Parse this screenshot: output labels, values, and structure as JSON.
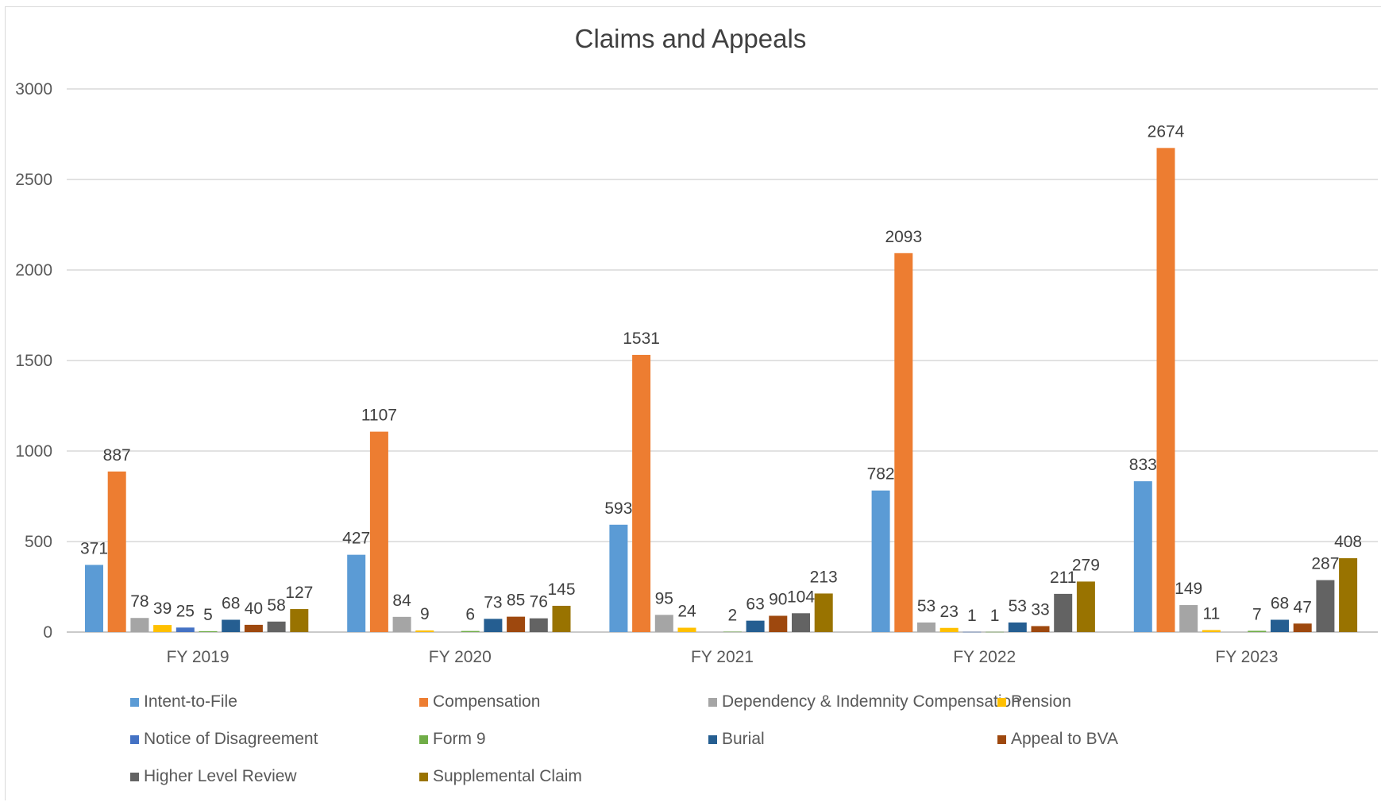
{
  "chart_data": {
    "type": "bar",
    "title": "Claims and Appeals",
    "categories": [
      "FY 2019",
      "FY 2020",
      "FY 2021",
      "FY 2022",
      "FY 2023"
    ],
    "ylim": [
      0,
      3000
    ],
    "yticks": [
      0,
      500,
      1000,
      1500,
      2000,
      2500,
      3000
    ],
    "grid": true,
    "legend_position": "bottom",
    "series": [
      {
        "name": "Intent-to-File",
        "color": "#5b9bd5",
        "values": [
          371,
          427,
          593,
          782,
          833
        ],
        "labels": [
          "371",
          "427",
          "593",
          "782",
          "833"
        ]
      },
      {
        "name": "Compensation",
        "color": "#ed7d31",
        "values": [
          887,
          1107,
          1531,
          2093,
          2674
        ],
        "labels": [
          "887",
          "1107",
          "1531",
          "2093",
          "2674"
        ]
      },
      {
        "name": "Dependency & Indemnity Compensation",
        "color": "#a5a5a5",
        "values": [
          78,
          84,
          95,
          53,
          149
        ],
        "labels": [
          "78",
          "84",
          "95",
          "53",
          "149"
        ]
      },
      {
        "name": "Pension",
        "color": "#ffc000",
        "values": [
          39,
          9,
          24,
          23,
          11
        ],
        "labels": [
          "39",
          "9",
          "24",
          "23",
          "11"
        ]
      },
      {
        "name": "Notice of Disagreement",
        "color": "#4472c4",
        "values": [
          25,
          null,
          null,
          1,
          null
        ],
        "labels": [
          "25",
          "",
          "",
          "1",
          ""
        ]
      },
      {
        "name": "Form 9",
        "color": "#70ad47",
        "values": [
          5,
          6,
          2,
          1,
          7
        ],
        "labels": [
          "5",
          "6",
          "2",
          "1",
          "7"
        ]
      },
      {
        "name": "Burial",
        "color": "#255e91",
        "values": [
          68,
          73,
          63,
          53,
          68
        ],
        "labels": [
          "68",
          "73",
          "63",
          "53",
          "68"
        ]
      },
      {
        "name": "Appeal to BVA",
        "color": "#9e480e",
        "values": [
          40,
          85,
          90,
          33,
          47
        ],
        "labels": [
          "40",
          "85",
          "90",
          "33",
          "47"
        ]
      },
      {
        "name": "Higher Level Review",
        "color": "#636363",
        "values": [
          58,
          76,
          104,
          211,
          287
        ],
        "labels": [
          "58",
          "76",
          "104",
          "211",
          "287"
        ]
      },
      {
        "name": "Supplemental Claim",
        "color": "#997300",
        "values": [
          127,
          145,
          213,
          279,
          408
        ],
        "labels": [
          "127",
          "145",
          "213",
          "279",
          "408"
        ]
      }
    ]
  }
}
